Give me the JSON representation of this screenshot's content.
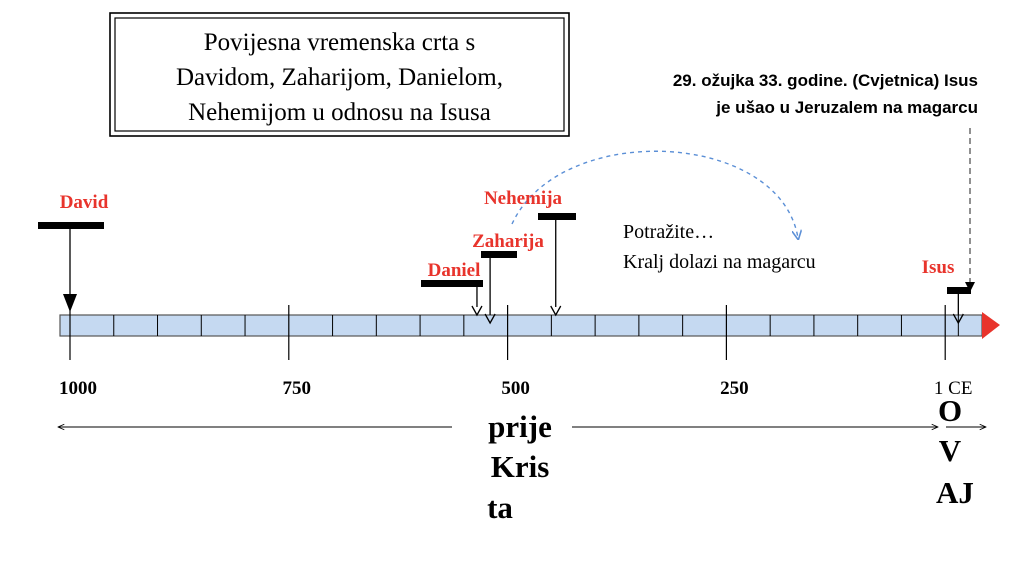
{
  "title_lines": [
    "Povijesna vremenska crta s",
    "Davidom, Zaharijom, Danielom,",
    "Nehemijom u odnosu na Isusa"
  ],
  "note_lines": [
    "29. ožujka 33. godine. (Cvjetnica) Isus",
    "je ušao u Jeruzalem na magarcu"
  ],
  "callout_lines": [
    "Potražite…",
    "Kralj dolazi na magarcu"
  ],
  "axis": {
    "range": [
      -1000,
      33
    ],
    "minor_step": 50,
    "tick_labels": [
      {
        "year": -1000,
        "text": "1000"
      },
      {
        "year": -750,
        "text": "750"
      },
      {
        "year": -500,
        "text": "500"
      },
      {
        "year": -250,
        "text": "250"
      },
      {
        "year": 1,
        "text": "1 CE"
      }
    ]
  },
  "events": [
    {
      "name": "David",
      "year": -1000,
      "color": "#e8342c"
    },
    {
      "name": "Daniel",
      "year": -535,
      "color": "#e8342c"
    },
    {
      "name": "Zaharija",
      "year": -520,
      "color": "#e8342c"
    },
    {
      "name": "Nehemija",
      "year": -445,
      "color": "#e8342c"
    },
    {
      "name": "Isus",
      "year": 15,
      "color": "#e8342c"
    }
  ],
  "era_labels": {
    "bc_lines": [
      "prije",
      "Kris",
      "ta"
    ],
    "ad_lines": [
      "O",
      "V",
      "AJ"
    ]
  },
  "colors": {
    "bar_fill": "#c5d9f1",
    "bar_stroke": "#555555",
    "arrow_head": "#e8342c",
    "event_label": "#e8342c",
    "dashed_link": "#5b8fd6"
  }
}
